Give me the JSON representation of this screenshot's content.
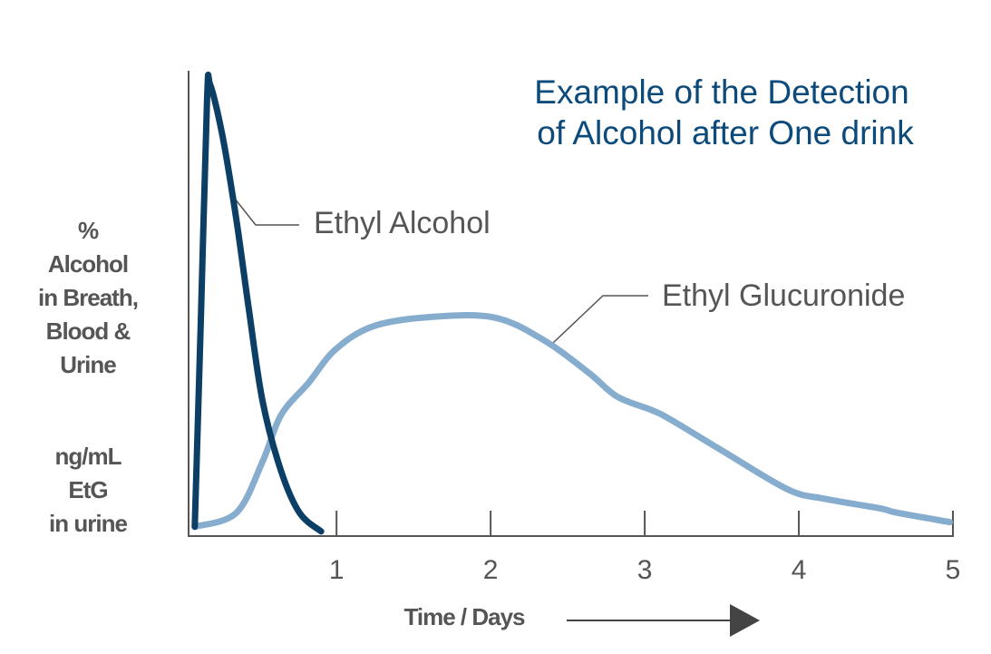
{
  "chart_data": {
    "type": "line",
    "title": [
      "Example of the Detection",
      "of Alcohol after One drink"
    ],
    "y_label": [
      "%",
      "Alcohol",
      "in Breath,",
      "Blood &",
      "Urine",
      "ng/mL",
      "EtG",
      "in urine"
    ],
    "x_label": "Time / Days",
    "xlim": [
      0.04,
      5
    ],
    "xticks": [
      1,
      2,
      3,
      4,
      5
    ],
    "ylim": [
      0,
      100
    ],
    "series": [
      {
        "name": "Ethyl Alcohol",
        "color": "#0b3f66",
        "x": [
          0.08,
          0.12,
          0.16,
          0.18,
          0.26,
          0.35,
          0.43,
          0.52,
          0.64,
          0.76,
          0.9
        ],
        "values": [
          2,
          47,
          94,
          97,
          86,
          68,
          49,
          29,
          14,
          5,
          1
        ]
      },
      {
        "name": "Ethyl Glucuronide",
        "color": "#86adce",
        "x": [
          0.08,
          0.35,
          0.52,
          0.64,
          0.82,
          0.99,
          1.23,
          1.58,
          2.02,
          2.35,
          2.64,
          2.82,
          3.05,
          3.17,
          3.52,
          3.93,
          4.17,
          4.52,
          4.64,
          4.98
        ],
        "values": [
          2,
          5,
          16,
          26,
          33,
          40,
          45,
          47,
          47,
          42,
          35,
          30,
          27,
          25,
          18,
          10,
          8,
          6,
          5,
          3
        ]
      }
    ]
  }
}
